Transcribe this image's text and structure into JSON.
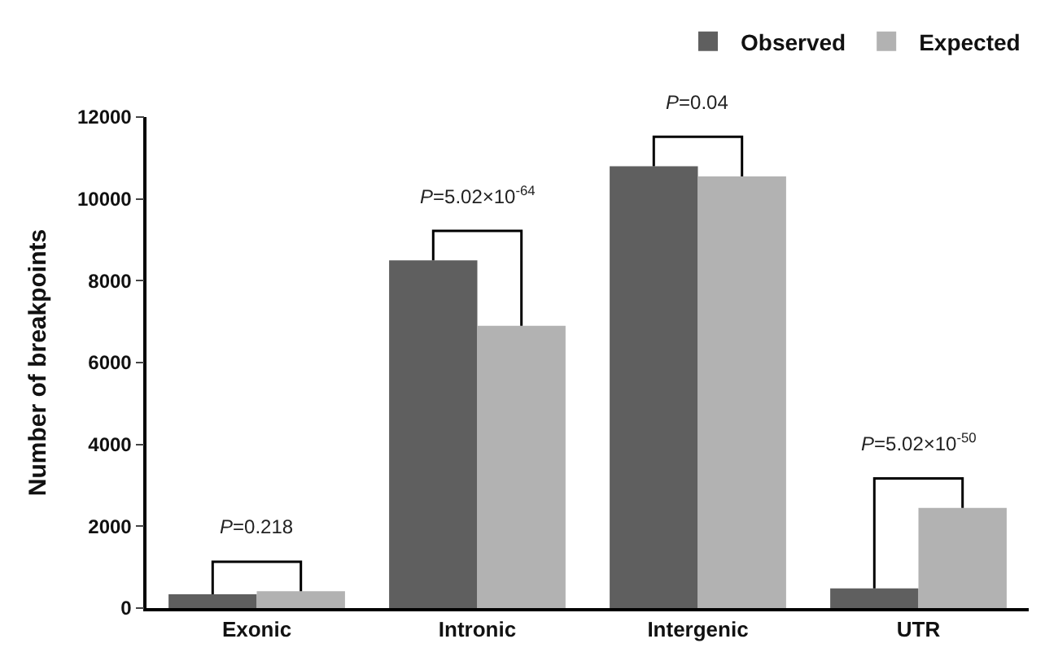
{
  "chart_data": {
    "type": "bar",
    "ylabel": "Number of breakpoints",
    "categories": [
      "Exonic",
      "Intronic",
      "Intergenic",
      "UTR"
    ],
    "series": [
      {
        "name": "Observed",
        "color": "#5f5f5f",
        "values": [
          340,
          8500,
          10800,
          480
        ]
      },
      {
        "name": "Expected",
        "color": "#b2b2b2",
        "values": [
          410,
          6900,
          10550,
          2450
        ]
      }
    ],
    "ylim": [
      0,
      12000
    ],
    "yticks": [
      0,
      2000,
      4000,
      6000,
      8000,
      10000,
      12000
    ],
    "legend": "top right",
    "annotations": [
      "P=0.218",
      "P=5.02×10$^{-64}$",
      "P=0.04",
      "P=5.02×10$^{-50}$"
    ]
  }
}
